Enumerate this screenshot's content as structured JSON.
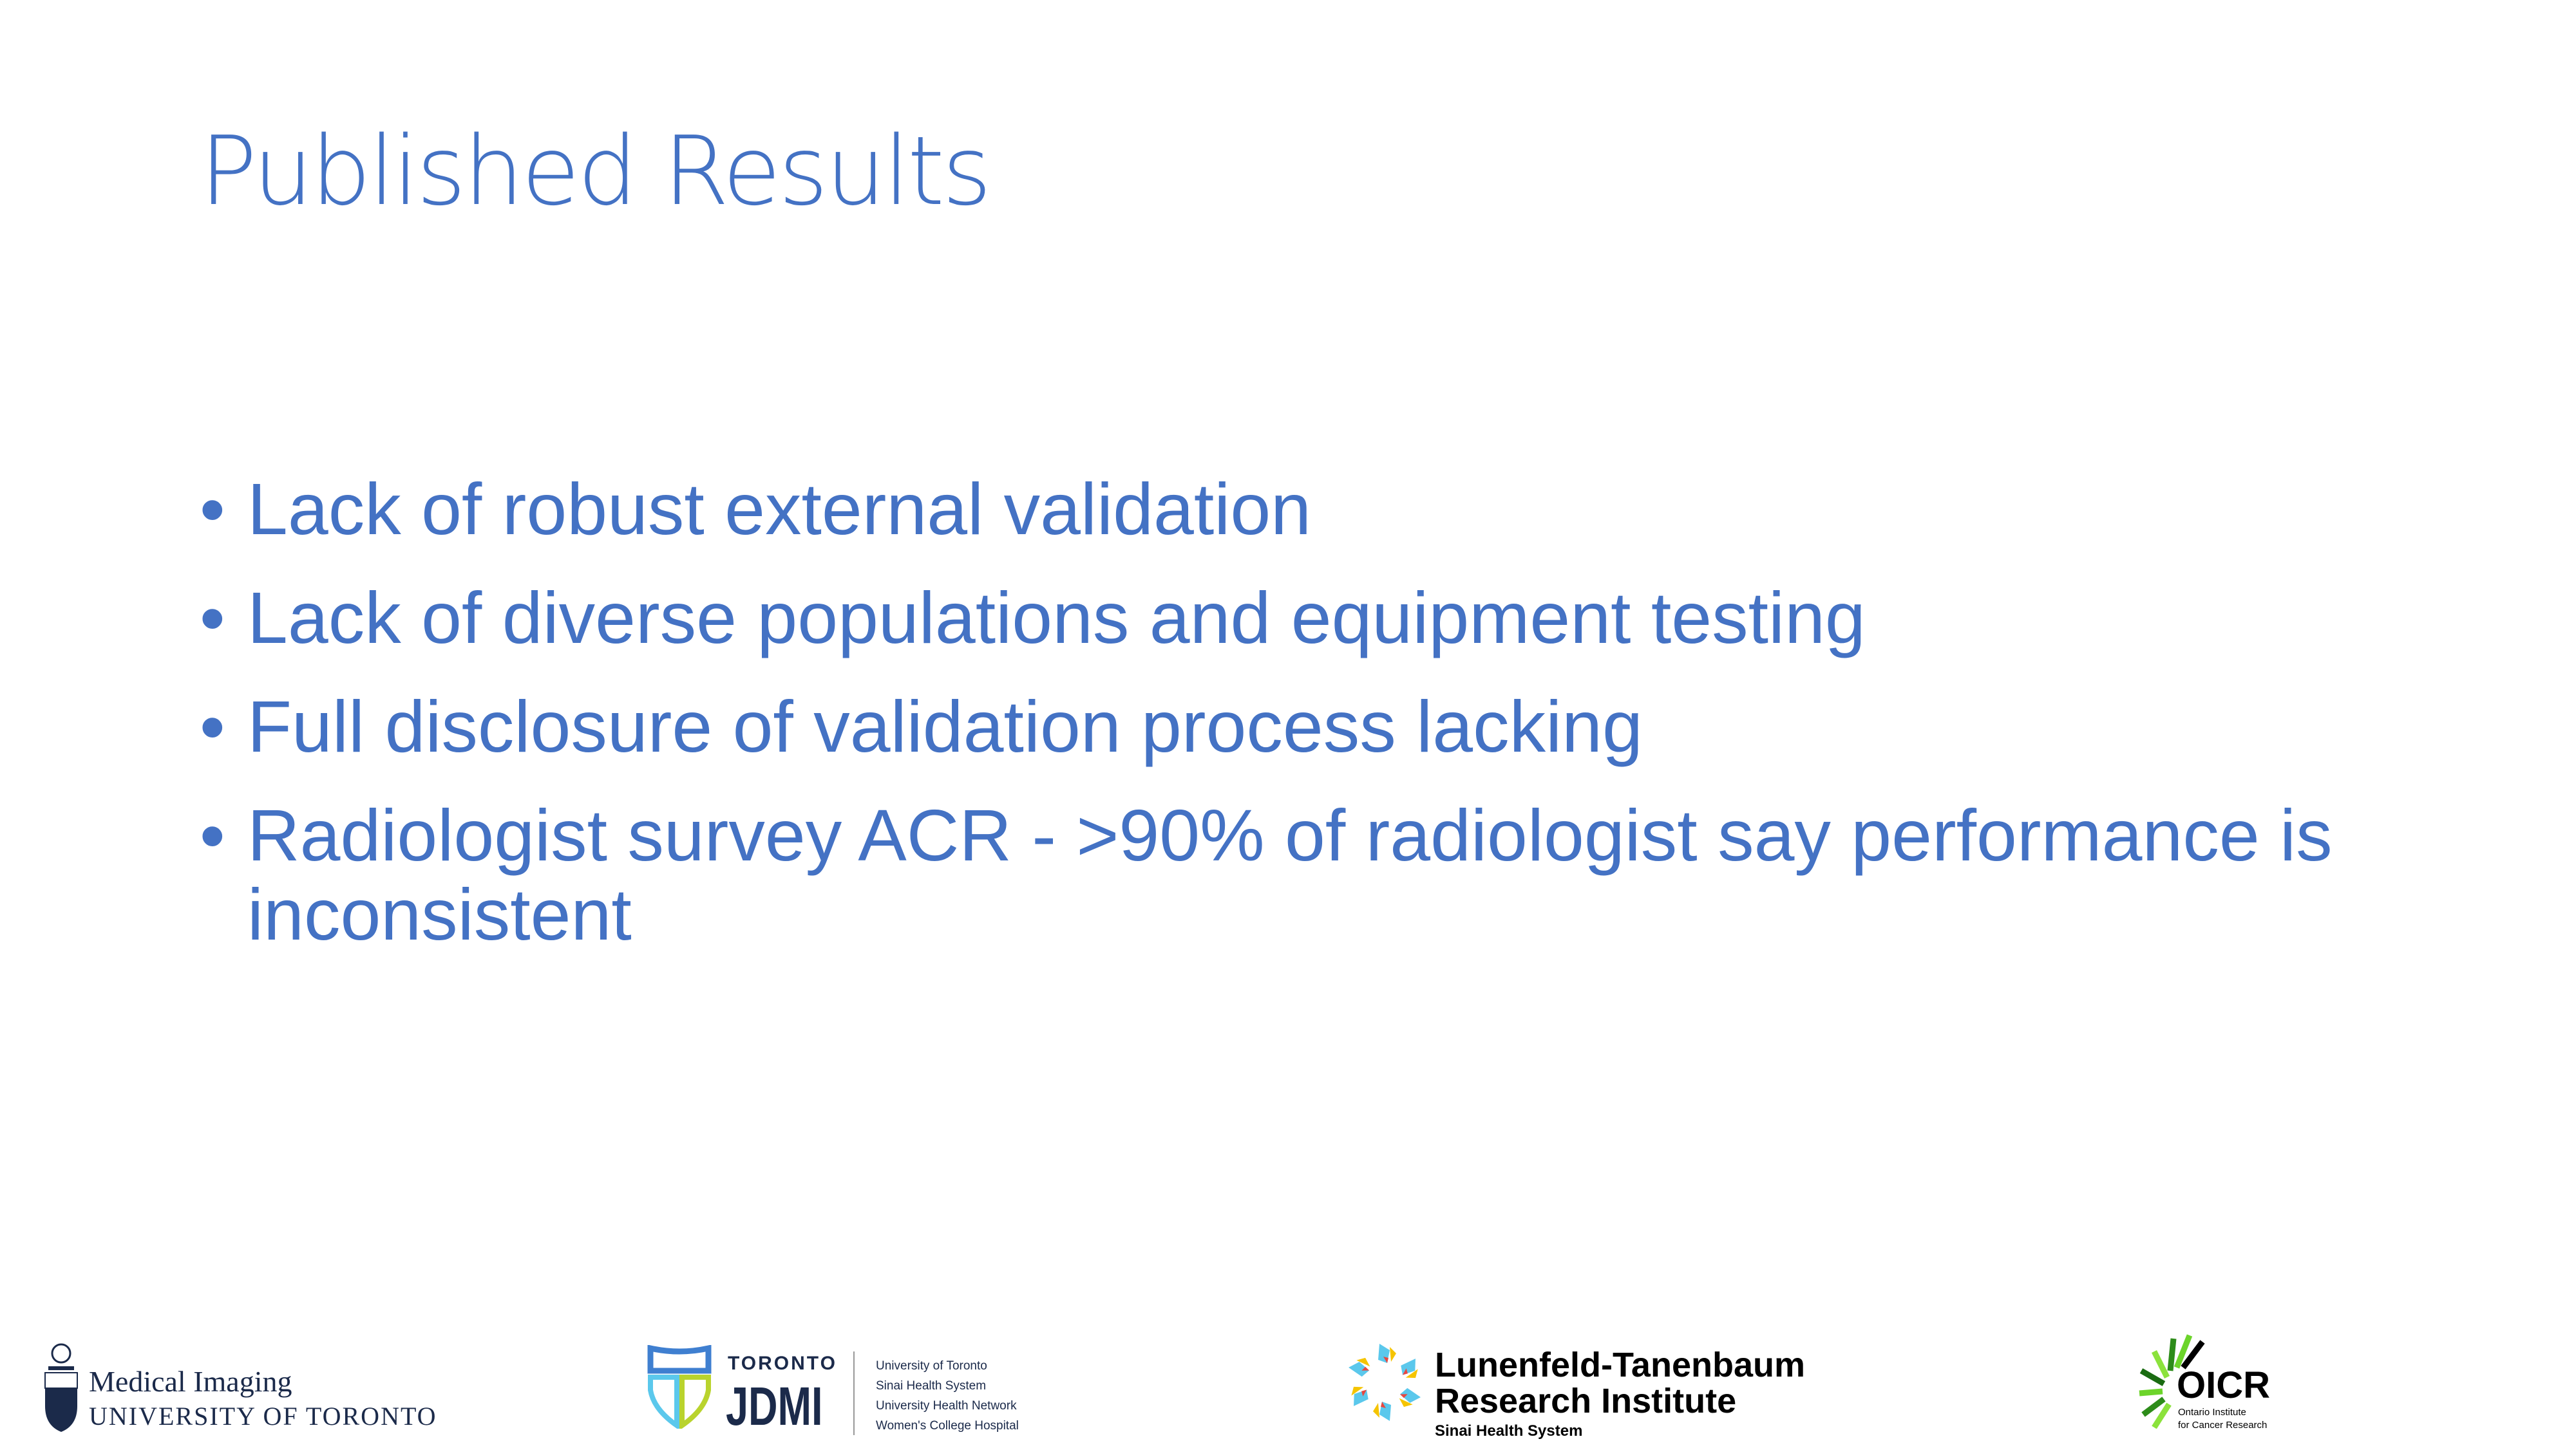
{
  "slide": {
    "title": "Published Results",
    "bullets": [
      "Lack of robust external validation",
      "Lack of diverse populations and equipment testing",
      "Full disclosure of validation process lacking",
      "Radiologist survey ACR - >90% of radiologist say performance is inconsistent"
    ],
    "bullet_glyph": "•"
  },
  "logos": {
    "uoft": {
      "line1": "Medical Imaging",
      "line2": "UNIVERSITY OF TORONTO"
    },
    "jdmi": {
      "top": "TORONTO",
      "name": "JDMI",
      "partners": [
        "University of Toronto",
        "Sinai Health System",
        "University Health Network",
        "Women's College Hospital"
      ]
    },
    "ltri": {
      "line1": "Lunenfeld-Tanenbaum",
      "line2": "Research Institute",
      "line3": "Sinai Health System"
    },
    "oicr": {
      "name": "OICR",
      "sub1": "Ontario Institute",
      "sub2": "for Cancer Research"
    }
  },
  "colors": {
    "accent": "#4472C4",
    "navy": "#1b2a4a"
  }
}
